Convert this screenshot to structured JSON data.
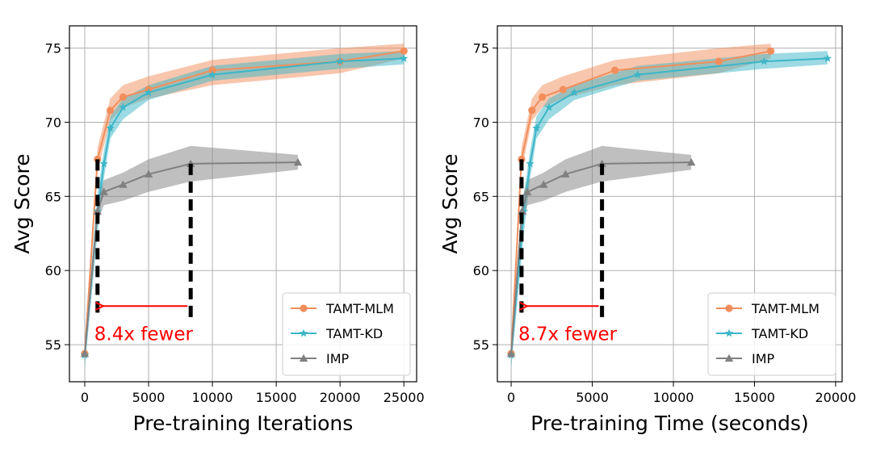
{
  "colors": {
    "mlm": "#f28e5b",
    "kd": "#3cb6c8",
    "imp": "#808080",
    "annotation": "#ff0000",
    "grid": "#b0b0b0"
  },
  "chart_data": [
    {
      "type": "line",
      "xlabel": "Pre-training Iterations",
      "ylabel": "Avg Score",
      "xlim": [
        -1200,
        26000
      ],
      "ylim": [
        52.5,
        76.5
      ],
      "xticks": [
        0,
        5000,
        10000,
        15000,
        20000,
        25000
      ],
      "yticks": [
        55,
        60,
        65,
        70,
        75
      ],
      "grid": true,
      "legend_position": "lower-right",
      "series": [
        {
          "name": "TAMT-MLM",
          "marker": "circle",
          "color_key": "mlm",
          "x": [
            0,
            1000,
            2000,
            3000,
            5000,
            10000,
            20000,
            25000
          ],
          "y": [
            54.4,
            67.5,
            70.8,
            71.7,
            72.2,
            73.5,
            74.1,
            74.8
          ],
          "lower": [
            53.7,
            66.7,
            70.1,
            71.0,
            71.6,
            72.5,
            73.3,
            74.3
          ],
          "upper": [
            55.1,
            68.3,
            71.6,
            72.5,
            73.1,
            74.2,
            75.0,
            75.3
          ]
        },
        {
          "name": "TAMT-KD",
          "marker": "star",
          "color_key": "kd",
          "x": [
            0,
            1000,
            1500,
            2000,
            3000,
            5000,
            10000,
            20000,
            25000
          ],
          "y": [
            54.3,
            64.0,
            67.2,
            69.6,
            71.0,
            72.0,
            73.2,
            74.1,
            74.3
          ],
          "lower": [
            53.4,
            62.5,
            66.2,
            68.9,
            70.2,
            71.5,
            72.8,
            73.6,
            73.9
          ],
          "upper": [
            55.1,
            65.2,
            68.1,
            70.4,
            71.6,
            72.5,
            73.8,
            74.6,
            74.8
          ]
        },
        {
          "name": "IMP",
          "marker": "triangle",
          "color_key": "imp",
          "x": [
            0,
            1000,
            1500,
            3000,
            5000,
            8300,
            16700
          ],
          "y": [
            54.4,
            64.0,
            65.3,
            65.8,
            66.5,
            67.2,
            67.3
          ],
          "lower": [
            53.9,
            63.3,
            64.4,
            64.7,
            65.3,
            66.0,
            66.8
          ],
          "upper": [
            54.8,
            64.8,
            66.1,
            66.6,
            67.5,
            68.4,
            67.8
          ]
        }
      ],
      "annotation": {
        "text": "8.4x fewer",
        "dashed_lines": [
          {
            "x": 1000,
            "y_top": 67.5,
            "y_bottom": 56.8
          },
          {
            "x": 8300,
            "y_top": 67.2,
            "y_bottom": 56.8
          }
        ],
        "arrow": {
          "from_x": 8300,
          "to_x": 1000,
          "y": 57.6
        }
      }
    },
    {
      "type": "line",
      "xlabel": "Pre-training Time (seconds)",
      "ylabel": "Avg Score",
      "xlim": [
        -850,
        20400
      ],
      "ylim": [
        52.5,
        76.5
      ],
      "xticks": [
        0,
        5000,
        10000,
        15000,
        20000
      ],
      "yticks": [
        55,
        60,
        65,
        70,
        75
      ],
      "grid": true,
      "legend_position": "lower-right",
      "series": [
        {
          "name": "TAMT-MLM",
          "marker": "circle",
          "color_key": "mlm",
          "x": [
            0,
            640,
            1280,
            1920,
            3200,
            6400,
            12800,
            16000
          ],
          "y": [
            54.4,
            67.5,
            70.8,
            71.7,
            72.2,
            73.5,
            74.1,
            74.8
          ],
          "lower": [
            53.7,
            66.7,
            70.1,
            71.0,
            71.6,
            72.5,
            73.3,
            74.3
          ],
          "upper": [
            55.1,
            68.3,
            71.6,
            72.5,
            73.1,
            74.2,
            75.0,
            75.3
          ]
        },
        {
          "name": "TAMT-KD",
          "marker": "star",
          "color_key": "kd",
          "x": [
            0,
            780,
            1170,
            1560,
            2340,
            3900,
            7800,
            15600,
            19500
          ],
          "y": [
            54.3,
            64.0,
            67.2,
            69.6,
            71.0,
            72.0,
            73.2,
            74.1,
            74.3
          ],
          "lower": [
            53.4,
            62.5,
            66.2,
            68.9,
            70.2,
            71.5,
            72.8,
            73.6,
            73.9
          ],
          "upper": [
            55.1,
            65.2,
            68.1,
            70.4,
            71.6,
            72.5,
            73.8,
            74.6,
            74.8
          ]
        },
        {
          "name": "IMP",
          "marker": "triangle",
          "color_key": "imp",
          "x": [
            0,
            670,
            1000,
            2000,
            3350,
            5600,
            11100
          ],
          "y": [
            54.4,
            64.0,
            65.3,
            65.8,
            66.5,
            67.2,
            67.3
          ],
          "lower": [
            53.9,
            63.3,
            64.4,
            64.7,
            65.3,
            66.0,
            66.8
          ],
          "upper": [
            54.8,
            64.8,
            66.1,
            66.6,
            67.5,
            68.4,
            67.8
          ]
        }
      ],
      "annotation": {
        "text": "8.7x fewer",
        "dashed_lines": [
          {
            "x": 640,
            "y_top": 67.5,
            "y_bottom": 56.8
          },
          {
            "x": 5600,
            "y_top": 67.2,
            "y_bottom": 56.8
          }
        ],
        "arrow": {
          "from_x": 5600,
          "to_x": 640,
          "y": 57.6
        }
      }
    }
  ]
}
